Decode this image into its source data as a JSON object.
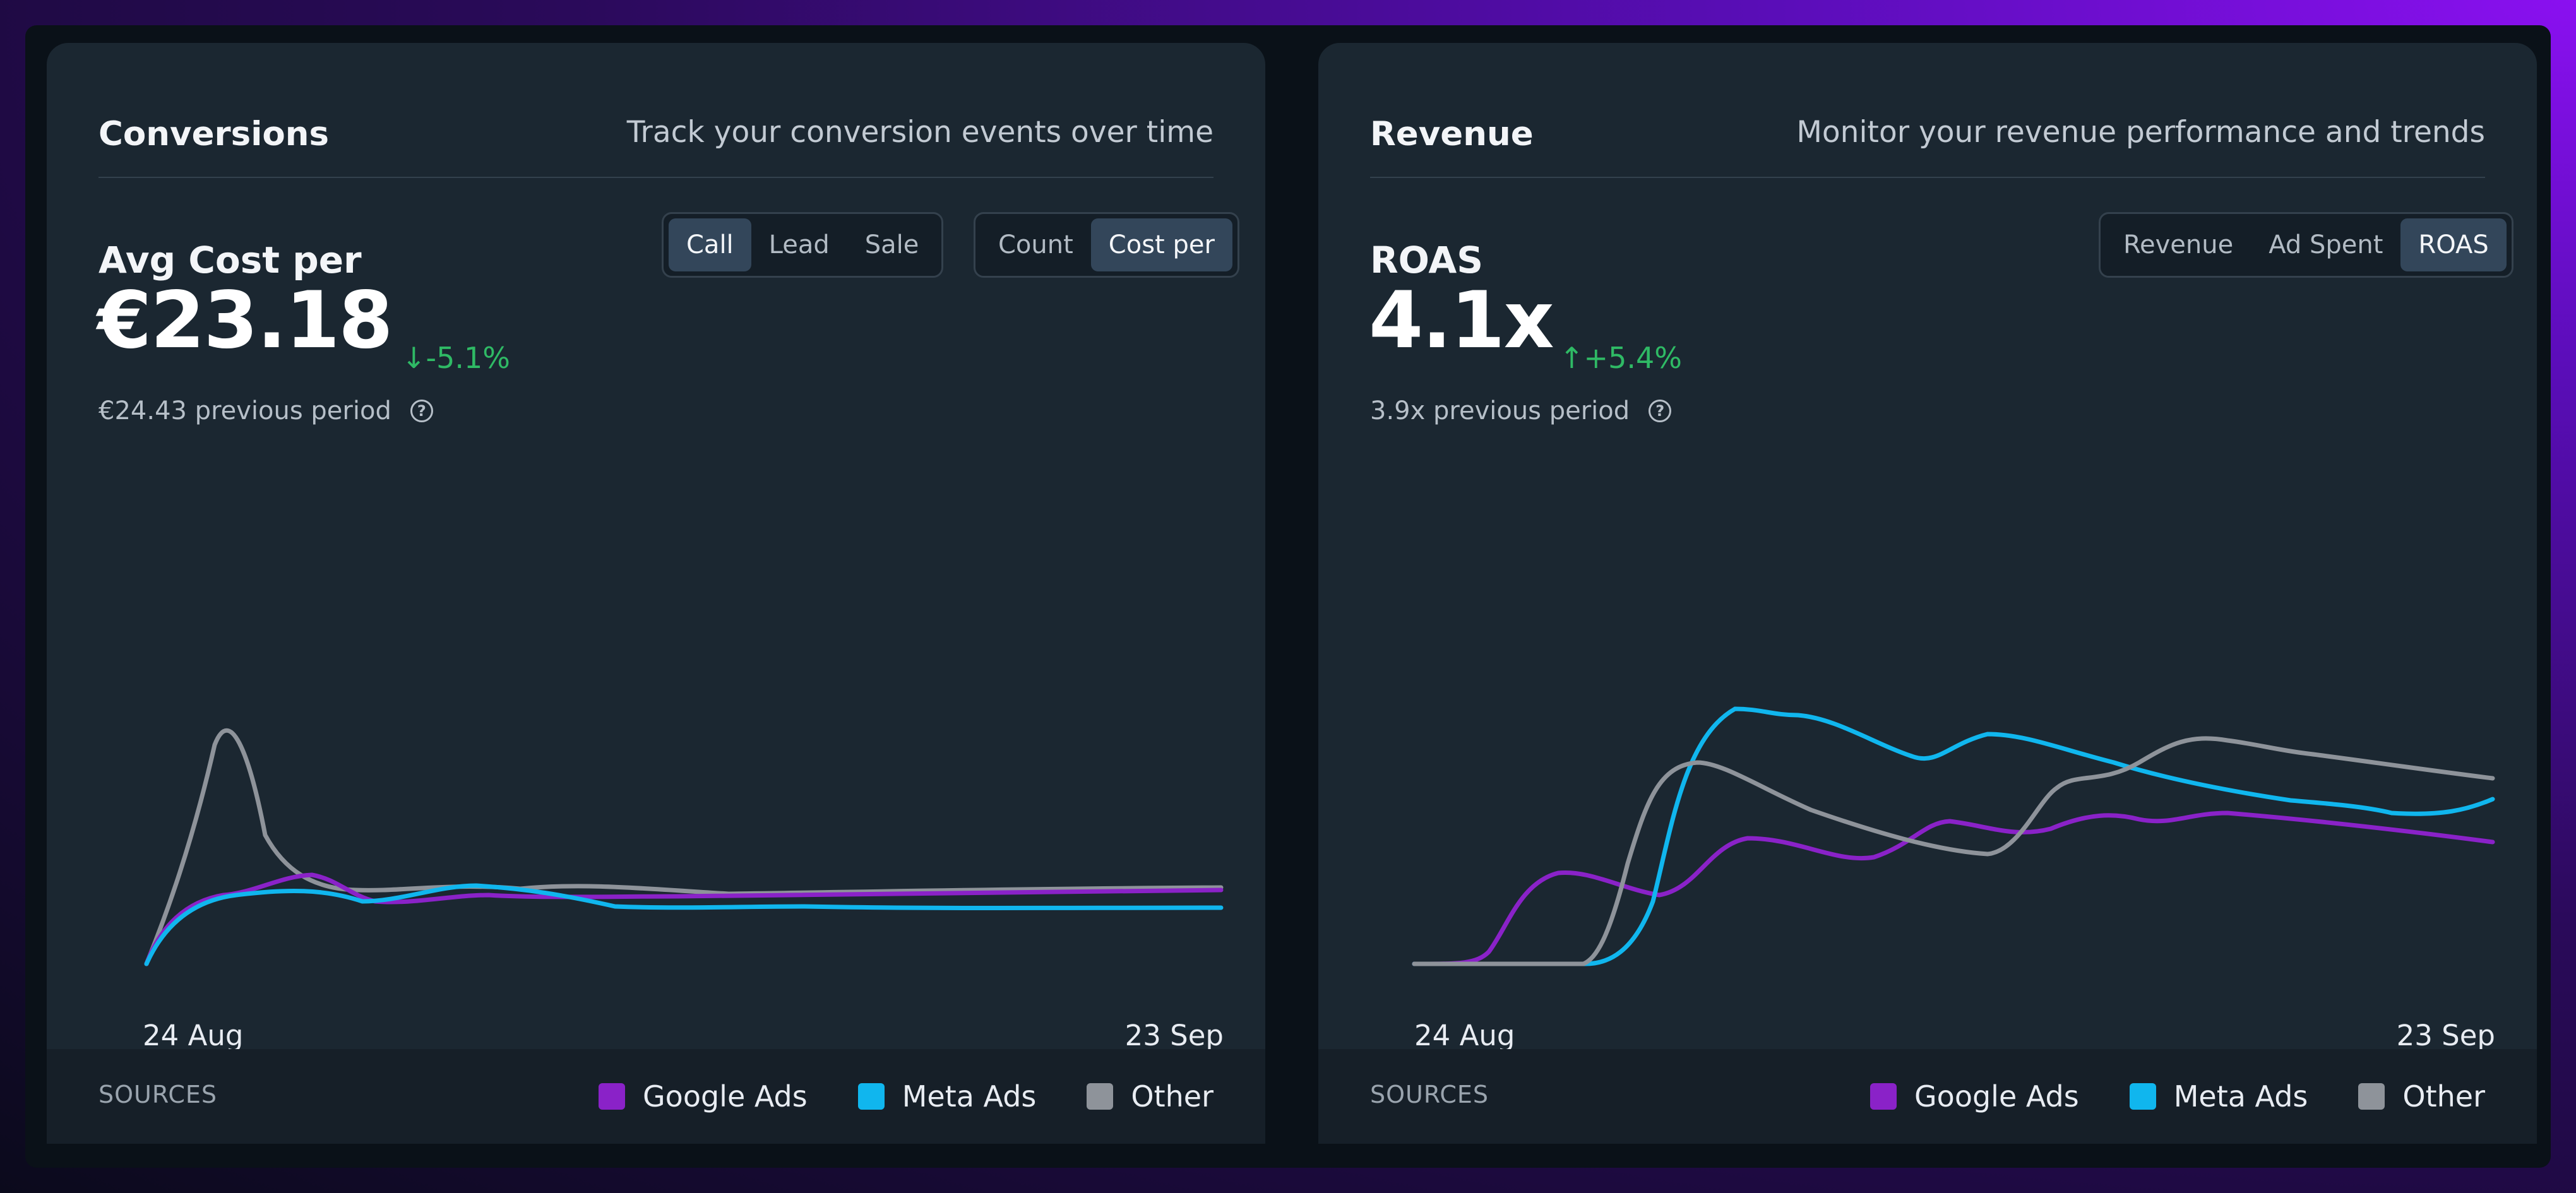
{
  "panels": [
    {
      "title": "Conversions",
      "subtitle": "Track your conversion events over time",
      "metric_label": "Avg Cost per",
      "metric_value": "€23.18",
      "metric_change": "↓-5.1%",
      "previous_period": "€24.43 previous period",
      "help_icon": "question-circle-icon",
      "segments": [
        {
          "buttons": [
            "Call",
            "Lead",
            "Sale"
          ],
          "active": "Call"
        },
        {
          "buttons": [
            "Count",
            "Cost per"
          ],
          "active": "Cost per"
        }
      ],
      "chart": {
        "x_start": "24 Aug",
        "x_end": "23 Sep"
      }
    },
    {
      "title": "Revenue",
      "subtitle": "Monitor your revenue performance and trends",
      "metric_label": "ROAS",
      "metric_value": "4.1x",
      "metric_change": "↑+5.4%",
      "previous_period": "3.9x previous period",
      "help_icon": "question-circle-icon",
      "segments": [
        {
          "buttons": [
            "Revenue",
            "Ad Spent",
            "ROAS"
          ],
          "active": "ROAS"
        }
      ],
      "chart": {
        "x_start": "24 Aug",
        "x_end": "23 Sep"
      }
    }
  ],
  "sources_label": "SOURCES",
  "legend": [
    {
      "name": "Google Ads",
      "color": "#8a22c8"
    },
    {
      "name": "Meta Ads",
      "color": "#10b6ee"
    },
    {
      "name": "Other",
      "color": "#8e939a"
    }
  ],
  "colors": {
    "positive_change": "#2fba65",
    "panel_bg": "#1b2731",
    "accent_gradient": "#8a10f0"
  }
}
